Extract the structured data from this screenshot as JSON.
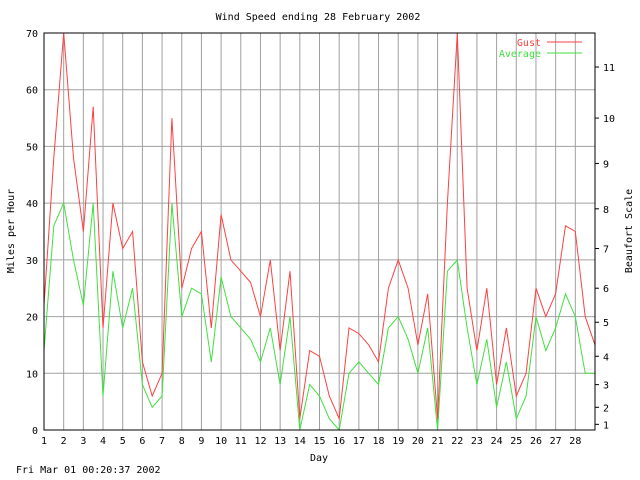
{
  "footer_timestamp": "Fri Mar 01 00:20:37 2002",
  "colors": {
    "gust": "#ff4040",
    "average": "#40e040",
    "grid": "#a0a0a0",
    "axis": "#000000"
  },
  "chart_data": {
    "type": "line",
    "title": "Wind Speed ending 28 February 2002",
    "xlabel": "Day",
    "ylabel": "Miles per Hour",
    "y2label": "Beaufort Scale",
    "xlim": [
      1,
      29
    ],
    "ylim": [
      0,
      70
    ],
    "grid": true,
    "legend_position": "top-right",
    "x_ticks": [
      1,
      2,
      3,
      4,
      5,
      6,
      7,
      8,
      9,
      10,
      11,
      12,
      13,
      14,
      15,
      16,
      17,
      18,
      19,
      20,
      21,
      22,
      23,
      24,
      25,
      26,
      27,
      28
    ],
    "y_ticks": [
      0,
      10,
      20,
      30,
      40,
      50,
      60,
      70
    ],
    "beaufort_ticks": [
      {
        "label": "1",
        "mph": 1
      },
      {
        "label": "2",
        "mph": 4
      },
      {
        "label": "3",
        "mph": 8
      },
      {
        "label": "4",
        "mph": 13
      },
      {
        "label": "5",
        "mph": 19
      },
      {
        "label": "6",
        "mph": 25
      },
      {
        "label": "7",
        "mph": 32
      },
      {
        "label": "8",
        "mph": 39
      },
      {
        "label": "9",
        "mph": 47
      },
      {
        "label": "10",
        "mph": 55
      },
      {
        "label": "11",
        "mph": 64
      }
    ],
    "x": [
      1,
      1.5,
      2,
      2.5,
      3,
      3.5,
      4,
      4.5,
      5,
      5.5,
      6,
      6.5,
      7,
      7.5,
      8,
      8.5,
      9,
      9.5,
      10,
      10.5,
      11,
      11.5,
      12,
      12.5,
      13,
      13.5,
      14,
      14.5,
      15,
      15.5,
      16,
      16.5,
      17,
      17.5,
      18,
      18.5,
      19,
      19.5,
      20,
      20.5,
      21,
      21.5,
      22,
      22.5,
      23,
      23.5,
      24,
      24.5,
      25,
      25.5,
      26,
      26.5,
      27,
      27.5,
      28,
      28.5,
      29
    ],
    "series": [
      {
        "name": "Gust",
        "values": [
          22,
          48,
          70,
          48,
          35,
          57,
          18,
          40,
          32,
          35,
          12,
          6,
          10,
          55,
          25,
          32,
          35,
          18,
          38,
          30,
          28,
          26,
          20,
          30,
          14,
          28,
          2,
          14,
          13,
          6,
          2,
          18,
          17,
          15,
          12,
          25,
          30,
          25,
          15,
          24,
          2,
          40,
          70,
          25,
          14,
          25,
          8,
          18,
          6,
          10,
          25,
          20,
          24,
          36,
          35,
          20,
          15
        ]
      },
      {
        "name": "Average",
        "values": [
          14,
          36,
          40,
          30,
          22,
          40,
          6,
          28,
          18,
          25,
          8,
          4,
          6,
          40,
          20,
          25,
          24,
          12,
          27,
          20,
          18,
          16,
          12,
          18,
          8,
          20,
          0,
          8,
          6,
          2,
          0,
          10,
          12,
          10,
          8,
          18,
          20,
          16,
          10,
          18,
          0,
          28,
          30,
          18,
          8,
          16,
          4,
          12,
          2,
          6,
          20,
          14,
          18,
          24,
          20,
          10,
          10
        ]
      }
    ]
  }
}
